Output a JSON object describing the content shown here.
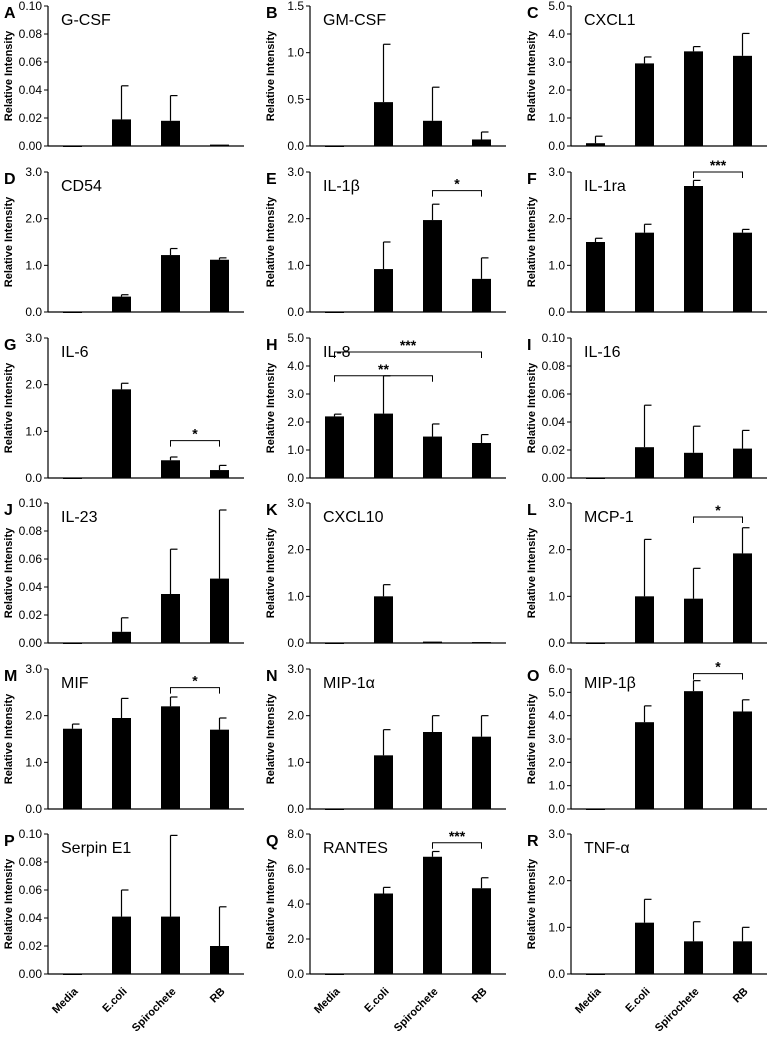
{
  "figure": {
    "categories": [
      "Media",
      "E.coli",
      "Spirochete",
      "RB"
    ]
  },
  "chart_data": [
    {
      "panel": "A",
      "title": "G-CSF",
      "type": "bar",
      "ylabel": "Relative Intensity",
      "ylim": [
        0,
        0.1
      ],
      "yticks": [
        "0.00",
        "0.02",
        "0.04",
        "0.06",
        "0.08",
        "0.10"
      ],
      "categories": [
        "Media",
        "E.coli",
        "Spirochete",
        "RB"
      ],
      "values": [
        0,
        0.019,
        0.018,
        0.001
      ],
      "errors": [
        0,
        0.024,
        0.018,
        0
      ],
      "significance": []
    },
    {
      "panel": "B",
      "title": "GM-CSF",
      "type": "bar",
      "ylabel": "Relative Intensity",
      "ylim": [
        0,
        1.5
      ],
      "yticks": [
        "0.0",
        "0.5",
        "1.0",
        "1.5"
      ],
      "categories": [
        "Media",
        "E.coli",
        "Spirochete",
        "RB"
      ],
      "values": [
        0,
        0.47,
        0.27,
        0.07
      ],
      "errors": [
        0,
        0.62,
        0.36,
        0.08
      ],
      "significance": []
    },
    {
      "panel": "C",
      "title": "CXCL1",
      "type": "bar",
      "ylabel": "Relative Intensity",
      "ylim": [
        0,
        5
      ],
      "yticks": [
        "0.0",
        "1.0",
        "2.0",
        "3.0",
        "4.0",
        "5.0"
      ],
      "categories": [
        "Media",
        "E.coli",
        "Spirochete",
        "RB"
      ],
      "values": [
        0.1,
        2.95,
        3.38,
        3.22
      ],
      "errors": [
        0.25,
        0.23,
        0.17,
        0.8
      ],
      "significance": []
    },
    {
      "panel": "D",
      "title": "CD54",
      "type": "bar",
      "ylabel": "Relative Intensity",
      "ylim": [
        0,
        3
      ],
      "yticks": [
        "0.0",
        "1.0",
        "2.0",
        "3.0"
      ],
      "categories": [
        "Media",
        "E.coli",
        "Spirochete",
        "RB"
      ],
      "values": [
        0,
        0.33,
        1.22,
        1.12
      ],
      "errors": [
        0,
        0.04,
        0.14,
        0.04
      ],
      "significance": []
    },
    {
      "panel": "E",
      "title": "IL-1β",
      "type": "bar",
      "ylabel": "Relative Intensity",
      "ylim": [
        0,
        3
      ],
      "yticks": [
        "0.0",
        "1.0",
        "2.0",
        "3.0"
      ],
      "categories": [
        "Media",
        "E.coli",
        "Spirochete",
        "RB"
      ],
      "values": [
        0,
        0.92,
        1.97,
        0.71
      ],
      "errors": [
        0,
        0.58,
        0.34,
        0.45
      ],
      "significance": [
        {
          "from": 2,
          "to": 3,
          "label": "*",
          "y": 2.6
        }
      ]
    },
    {
      "panel": "F",
      "title": "IL-1ra",
      "type": "bar",
      "ylabel": "Relative Intensity",
      "ylim": [
        0,
        3
      ],
      "yticks": [
        "0.0",
        "1.0",
        "2.0",
        "3.0"
      ],
      "categories": [
        "Media",
        "E.coli",
        "Spirochete",
        "RB"
      ],
      "values": [
        1.5,
        1.7,
        2.7,
        1.7
      ],
      "errors": [
        0.08,
        0.18,
        0.12,
        0.07
      ],
      "significance": [
        {
          "from": 2,
          "to": 3,
          "label": "***",
          "y": 3.0
        }
      ]
    },
    {
      "panel": "G",
      "title": "IL-6",
      "type": "bar",
      "ylabel": "Relative Intensity",
      "ylim": [
        0,
        3
      ],
      "yticks": [
        "0.0",
        "1.0",
        "2.0",
        "3.0"
      ],
      "categories": [
        "Media",
        "E.coli",
        "Spirochete",
        "RB"
      ],
      "values": [
        0,
        1.9,
        0.38,
        0.17
      ],
      "errors": [
        0,
        0.13,
        0.07,
        0.1
      ],
      "significance": [
        {
          "from": 2,
          "to": 3,
          "label": "*",
          "y": 0.8
        }
      ]
    },
    {
      "panel": "H",
      "title": "IL-8",
      "type": "bar",
      "ylabel": "Relative Intensity",
      "ylim": [
        0,
        5
      ],
      "yticks": [
        "0.0",
        "1.0",
        "2.0",
        "3.0",
        "4.0",
        "5.0"
      ],
      "categories": [
        "Media",
        "E.coli",
        "Spirochete",
        "RB"
      ],
      "values": [
        2.2,
        2.3,
        1.48,
        1.25
      ],
      "errors": [
        0.08,
        1.35,
        0.45,
        0.3
      ],
      "significance": [
        {
          "from": 0,
          "to": 3,
          "label": "***",
          "y": 4.5
        },
        {
          "from": 0,
          "to": 2,
          "label": "**",
          "y": 3.65
        }
      ]
    },
    {
      "panel": "I",
      "title": "IL-16",
      "type": "bar",
      "ylabel": "Relative Intensity",
      "ylim": [
        0,
        0.1
      ],
      "yticks": [
        "0.00",
        "0.02",
        "0.04",
        "0.06",
        "0.08",
        "0.10"
      ],
      "categories": [
        "Media",
        "E.coli",
        "Spirochete",
        "RB"
      ],
      "values": [
        0,
        0.022,
        0.018,
        0.021
      ],
      "errors": [
        0,
        0.03,
        0.019,
        0.013
      ],
      "significance": []
    },
    {
      "panel": "J",
      "title": "IL-23",
      "type": "bar",
      "ylabel": "Relative Intensity",
      "ylim": [
        0,
        0.1
      ],
      "yticks": [
        "0.00",
        "0.02",
        "0.04",
        "0.06",
        "0.08",
        "0.10"
      ],
      "categories": [
        "Media",
        "E.coli",
        "Spirochete",
        "RB"
      ],
      "values": [
        0,
        0.008,
        0.035,
        0.046
      ],
      "errors": [
        0,
        0.01,
        0.032,
        0.049
      ],
      "significance": []
    },
    {
      "panel": "K",
      "title": "CXCL10",
      "type": "bar",
      "ylabel": "Relative Intensity",
      "ylim": [
        0,
        3
      ],
      "yticks": [
        "0.0",
        "1.0",
        "2.0",
        "3.0"
      ],
      "categories": [
        "Media",
        "E.coli",
        "Spirochete",
        "RB"
      ],
      "values": [
        0,
        1.0,
        0.03,
        0.02
      ],
      "errors": [
        0,
        0.25,
        0,
        0
      ],
      "significance": []
    },
    {
      "panel": "L",
      "title": "MCP-1",
      "type": "bar",
      "ylabel": "Relative Intensity",
      "ylim": [
        0,
        3
      ],
      "yticks": [
        "0.0",
        "1.0",
        "2.0",
        "3.0"
      ],
      "categories": [
        "Media",
        "E.coli",
        "Spirochete",
        "RB"
      ],
      "values": [
        0,
        1.0,
        0.95,
        1.92
      ],
      "errors": [
        0,
        1.22,
        0.65,
        0.55
      ],
      "significance": [
        {
          "from": 2,
          "to": 3,
          "label": "*",
          "y": 2.7
        }
      ]
    },
    {
      "panel": "M",
      "title": "MIF",
      "type": "bar",
      "ylabel": "Relative Intensity",
      "ylim": [
        0,
        3
      ],
      "yticks": [
        "0.0",
        "1.0",
        "2.0",
        "3.0"
      ],
      "categories": [
        "Media",
        "E.coli",
        "Spirochete",
        "RB"
      ],
      "values": [
        1.72,
        1.95,
        2.2,
        1.7
      ],
      "errors": [
        0.1,
        0.42,
        0.2,
        0.25
      ],
      "significance": [
        {
          "from": 2,
          "to": 3,
          "label": "*",
          "y": 2.6
        }
      ]
    },
    {
      "panel": "N",
      "title": "MIP-1α",
      "type": "bar",
      "ylabel": "Relative Intensity",
      "ylim": [
        0,
        3
      ],
      "yticks": [
        "0.0",
        "1.0",
        "2.0",
        "3.0"
      ],
      "categories": [
        "Media",
        "E.coli",
        "Spirochete",
        "RB"
      ],
      "values": [
        0,
        1.15,
        1.65,
        1.55
      ],
      "errors": [
        0,
        0.55,
        0.35,
        0.45
      ],
      "significance": []
    },
    {
      "panel": "O",
      "title": "MIP-1β",
      "type": "bar",
      "ylabel": "Relative Intensity",
      "ylim": [
        0,
        6
      ],
      "yticks": [
        "0.0",
        "1.0",
        "2.0",
        "3.0",
        "4.0",
        "5.0",
        "6.0"
      ],
      "categories": [
        "Media",
        "E.coli",
        "Spirochete",
        "RB"
      ],
      "values": [
        0,
        3.72,
        5.05,
        4.18
      ],
      "errors": [
        0,
        0.7,
        0.45,
        0.5
      ],
      "significance": [
        {
          "from": 2,
          "to": 3,
          "label": "*",
          "y": 5.8
        }
      ]
    },
    {
      "panel": "P",
      "title": "Serpin E1",
      "type": "bar",
      "ylabel": "Relative Intensity",
      "ylim": [
        0,
        0.1
      ],
      "yticks": [
        "0.00",
        "0.02",
        "0.04",
        "0.06",
        "0.08",
        "0.10"
      ],
      "categories": [
        "Media",
        "E.coli",
        "Spirochete",
        "RB"
      ],
      "values": [
        0,
        0.041,
        0.041,
        0.02
      ],
      "errors": [
        0,
        0.019,
        0.058,
        0.028
      ],
      "significance": []
    },
    {
      "panel": "Q",
      "title": "RANTES",
      "type": "bar",
      "ylabel": "Relative Intensity",
      "ylim": [
        0,
        8
      ],
      "yticks": [
        "0.0",
        "2.0",
        "4.0",
        "6.0",
        "8.0"
      ],
      "categories": [
        "Media",
        "E.coli",
        "Spirochete",
        "RB"
      ],
      "values": [
        0,
        4.6,
        6.7,
        4.9
      ],
      "errors": [
        0,
        0.35,
        0.3,
        0.6
      ],
      "significance": [
        {
          "from": 2,
          "to": 3,
          "label": "***",
          "y": 7.5
        }
      ]
    },
    {
      "panel": "R",
      "title": "TNF-α",
      "type": "bar",
      "ylabel": "Relative Intensity",
      "ylim": [
        0,
        3
      ],
      "yticks": [
        "0.0",
        "1.0",
        "2.0",
        "3.0"
      ],
      "categories": [
        "Media",
        "E.coli",
        "Spirochete",
        "RB"
      ],
      "values": [
        0,
        1.1,
        0.7,
        0.7
      ],
      "errors": [
        0,
        0.5,
        0.42,
        0.3
      ],
      "significance": []
    }
  ]
}
